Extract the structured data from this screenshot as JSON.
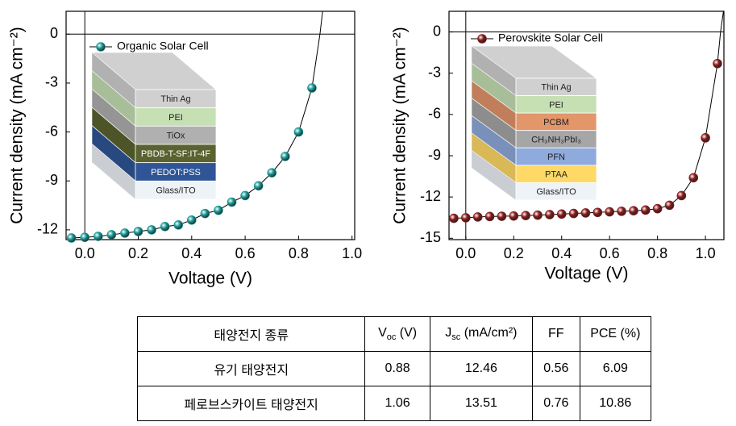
{
  "chart_data": [
    {
      "type": "line",
      "x_label": "Voltage (V)",
      "y_label": "Current density (mA cm⁻²)",
      "xlim": [
        -0.07,
        1.01
      ],
      "xticks": [
        {
          "value": 0,
          "label": "0.0"
        },
        0.2,
        0.4,
        0.6,
        0.8,
        {
          "value": 1,
          "label": "1.0"
        }
      ],
      "ylim": [
        -12.6,
        1.4
      ],
      "yticks": [
        0,
        -3,
        -6,
        -9,
        -12
      ],
      "zero_lines": true,
      "legend": "upper left",
      "series": [
        {
          "name": "Organic Solar Cell",
          "color": "#1a9a96",
          "x": [
            -0.05,
            0,
            0.05,
            0.1,
            0.15,
            0.2,
            0.25,
            0.3,
            0.35,
            0.4,
            0.45,
            0.5,
            0.55,
            0.6,
            0.65,
            0.7,
            0.75,
            0.8,
            0.85
          ],
          "values": [
            -12.5,
            -12.46,
            -12.4,
            -12.3,
            -12.2,
            -12.1,
            -12.0,
            -11.8,
            -11.7,
            -11.4,
            -11.0,
            -10.8,
            -10.3,
            -9.9,
            -9.3,
            -8.5,
            -7.5,
            -6.0,
            -3.3
          ]
        }
      ],
      "curve": {
        "x": [
          0.85,
          0.88,
          0.89
        ],
        "values": [
          -3.3,
          0,
          1.4
        ]
      },
      "inset_layers": [
        {
          "label": "Thin Ag",
          "color": "#d0d0d0"
        },
        {
          "label": "PEI",
          "color": "#c6e0b4"
        },
        {
          "label": "TiOx",
          "color": "#b0b0b0"
        },
        {
          "label": "PBDB-T-SF:IT-4F",
          "color": "#5a6330"
        },
        {
          "label": "PEDOT:PSS",
          "color": "#2f5597"
        },
        {
          "label": "Glass/ITO",
          "color": "#eef3f8"
        }
      ]
    },
    {
      "type": "line",
      "x_label": "Voltage (V)",
      "y_label": "Current density (mA cm⁻²)",
      "xlim": [
        -0.07,
        1.077
      ],
      "xticks": [
        {
          "value": 0,
          "label": "0.0"
        },
        0.2,
        0.4,
        0.6,
        0.8,
        {
          "value": 1,
          "label": "1.0"
        }
      ],
      "ylim": [
        -15.1,
        1.5
      ],
      "yticks": [
        0,
        -3,
        -6,
        -9,
        -12,
        -15
      ],
      "zero_lines": true,
      "legend": "upper left",
      "series": [
        {
          "name": "Perovskite Solar Cell",
          "color": "#8b1a1a",
          "x": [
            -0.05,
            0,
            0.05,
            0.1,
            0.15,
            0.2,
            0.25,
            0.3,
            0.35,
            0.4,
            0.45,
            0.5,
            0.55,
            0.6,
            0.65,
            0.7,
            0.75,
            0.8,
            0.85,
            0.9,
            0.95,
            1.0,
            1.05
          ],
          "values": [
            -13.55,
            -13.51,
            -13.45,
            -13.42,
            -13.4,
            -13.38,
            -13.35,
            -13.32,
            -13.28,
            -13.24,
            -13.2,
            -13.16,
            -13.12,
            -13.08,
            -13.04,
            -13.0,
            -12.95,
            -12.85,
            -12.6,
            -11.9,
            -10.6,
            -7.7,
            -2.3
          ]
        }
      ],
      "curve": {
        "x": [
          1.05,
          1.063,
          1.075
        ],
        "values": [
          -2.3,
          0,
          1.5
        ]
      },
      "inset_layers": [
        {
          "label": "Thin Ag",
          "color": "#d0d0d0"
        },
        {
          "label": "PEI",
          "color": "#c6e0b4"
        },
        {
          "label": "PCBM",
          "color": "#e2966a"
        },
        {
          "label": "CH₃NH₃PbI₃",
          "color": "#a6a6a6"
        },
        {
          "label": "PFN",
          "color": "#8faadc"
        },
        {
          "label": "PTAA",
          "color": "#ffd966"
        },
        {
          "label": "Glass/ITO",
          "color": "#eef3f8"
        }
      ]
    }
  ],
  "table": {
    "header": [
      "태양전지 종류",
      {
        "text": "V",
        "sub": "oc",
        "rest": " (V)"
      },
      {
        "text": "J",
        "sub": "sc",
        "rest": " (mA/cm²)"
      },
      "FF",
      "PCE (%)"
    ],
    "rows": [
      [
        "유기 태양전지",
        0.88,
        12.46,
        0.56,
        6.09
      ],
      [
        "페로브스카이트 태양전지",
        1.06,
        13.51,
        0.76,
        10.86
      ]
    ]
  }
}
